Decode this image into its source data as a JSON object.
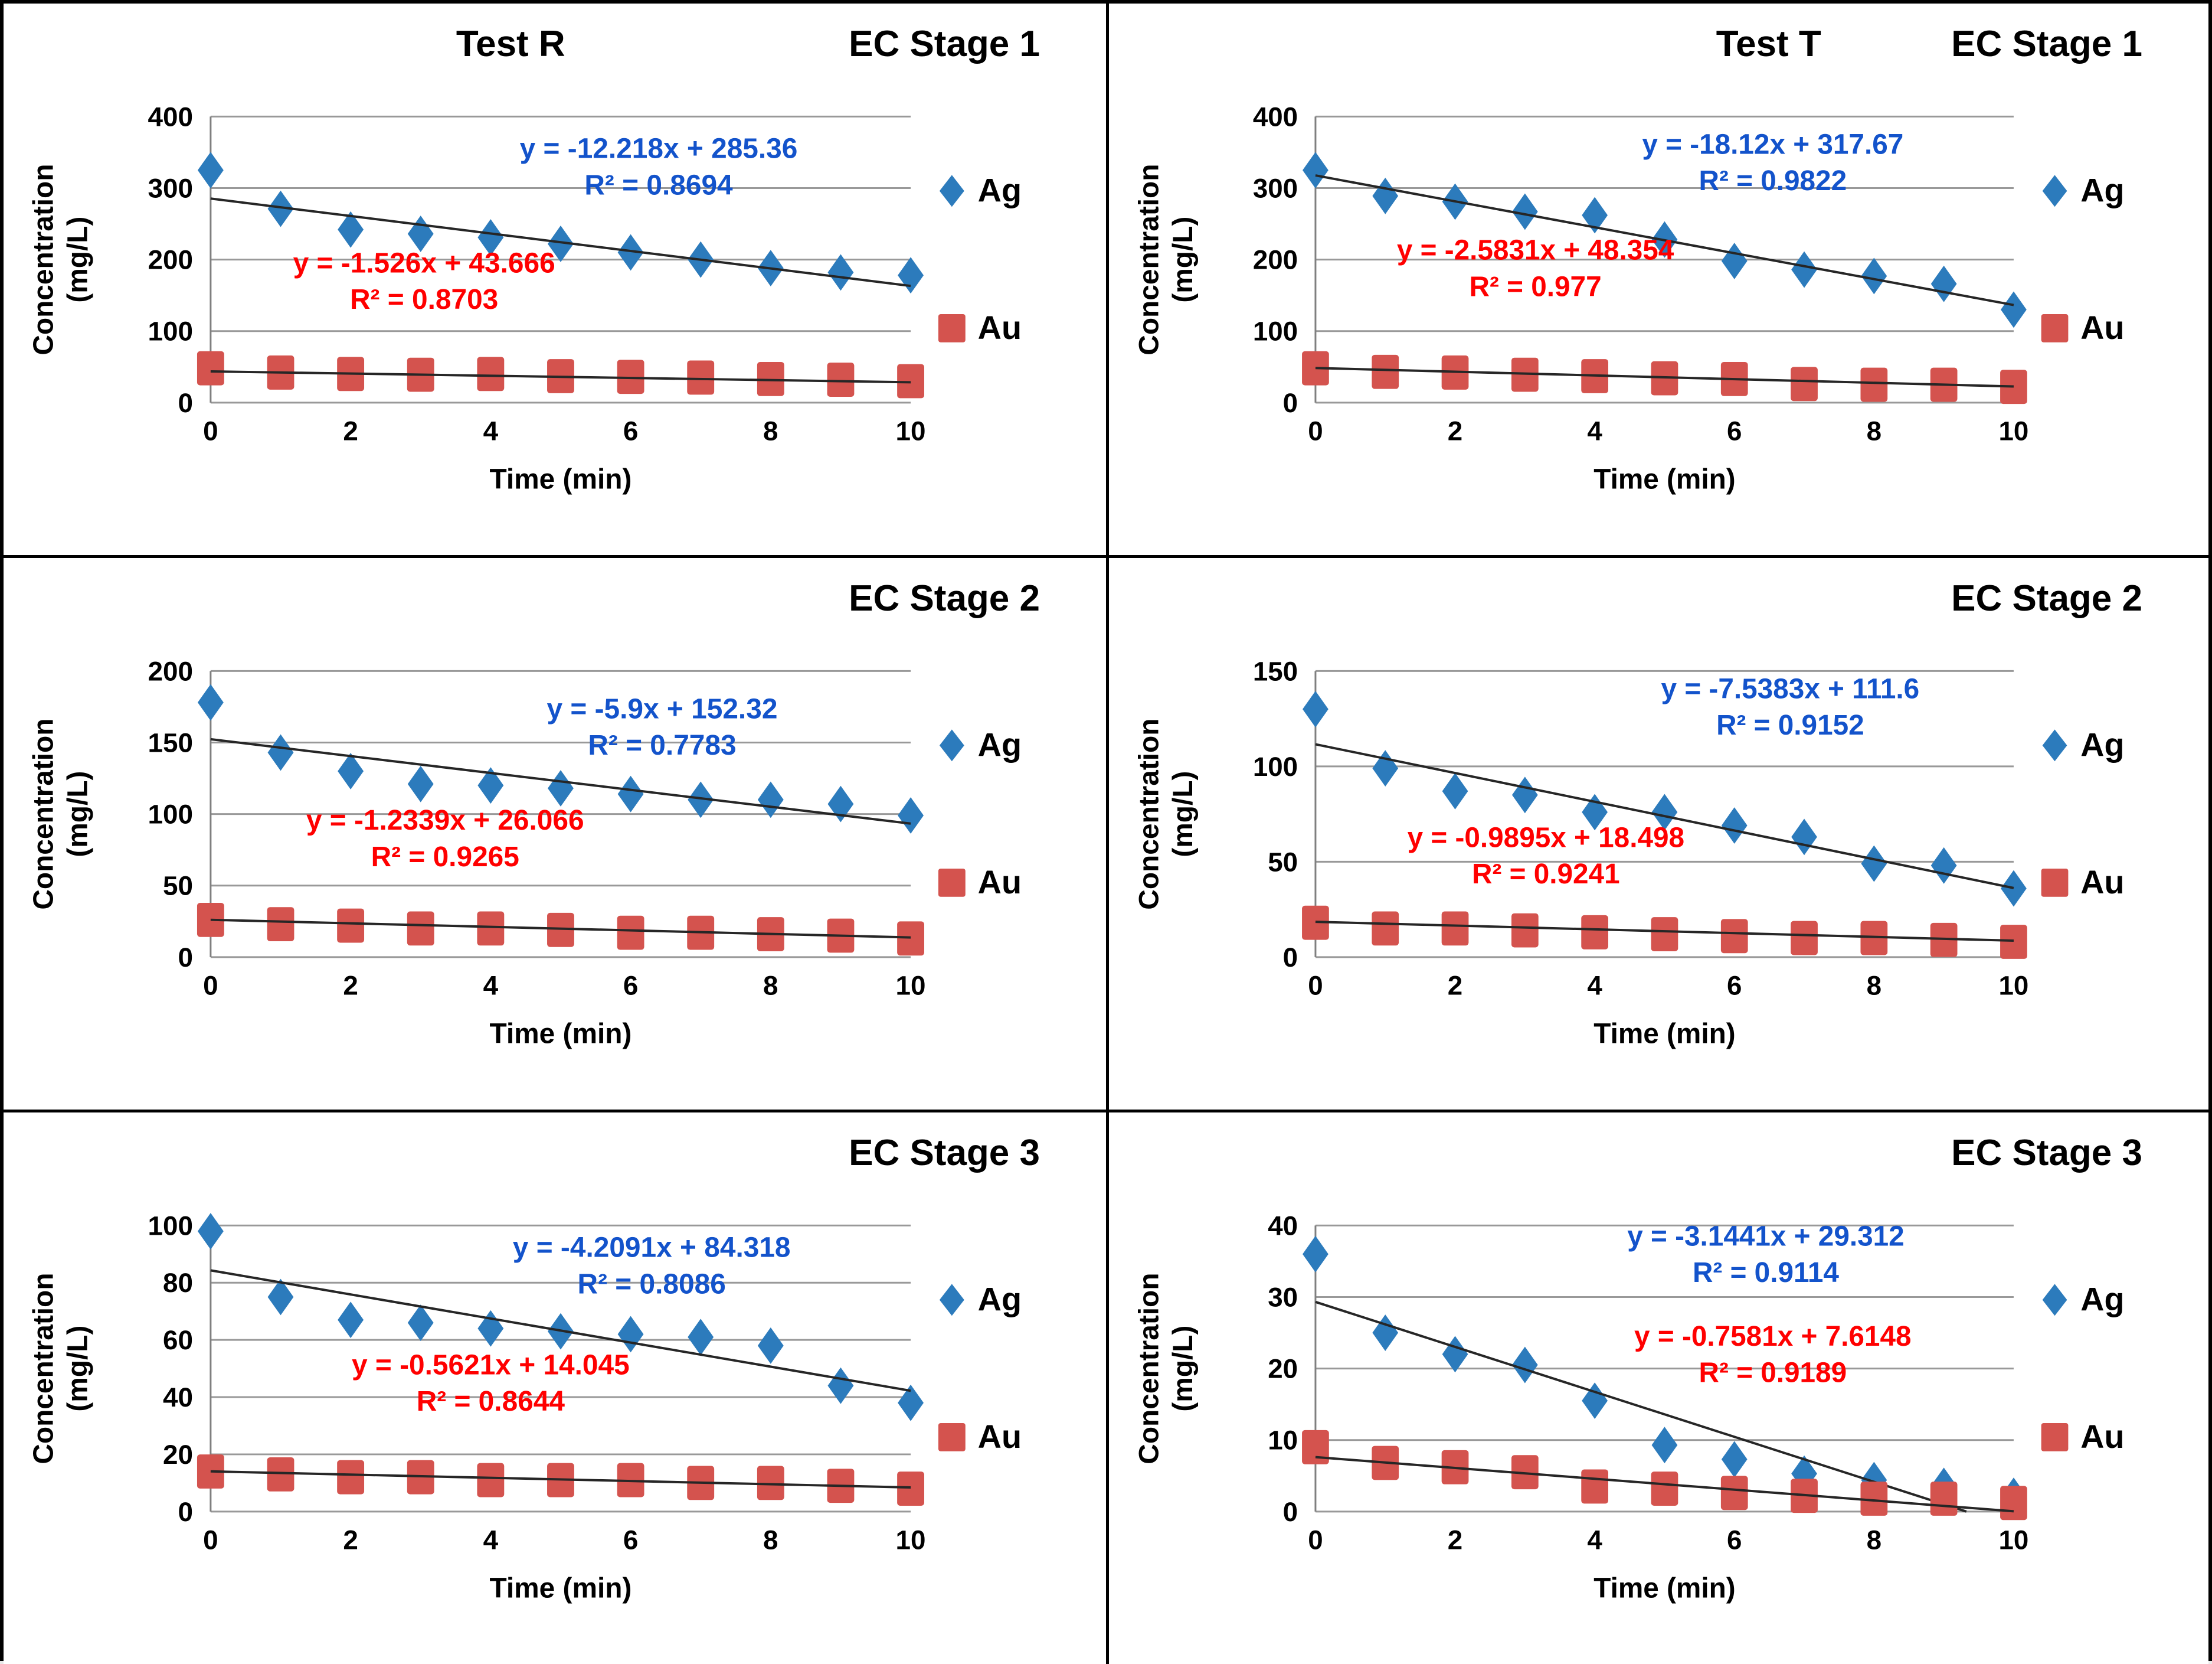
{
  "page": {
    "background": "#ffffff",
    "border_color": "#000000"
  },
  "colors": {
    "ag_marker": "#2C7BBC",
    "au_marker": "#D4534E",
    "eq_blue": "#1353CB",
    "eq_red": "#FF0000",
    "trendline": "#262626",
    "gridline": "#999999",
    "axis_line": "#7F7F7F",
    "text": "#000000"
  },
  "axis_labels": {
    "y_line1": "Concentration",
    "y_line2": "(mg/L)",
    "x": "Time (min)"
  },
  "legend": {
    "ag": "Ag",
    "au": "Au",
    "ag_marker_icon": "diamond-icon",
    "au_marker_icon": "square-icon"
  },
  "chart_data": [
    {
      "type": "scatter",
      "test_label": "Test R",
      "stage_label": "EC Stage 1",
      "title_left_xf": 0.46,
      "xlabel": "Time (min)",
      "ylabel": "Concentration (mg/L)",
      "xlim": [
        0,
        10
      ],
      "ylim": [
        0,
        400
      ],
      "xticks": [
        0,
        2,
        4,
        6,
        8,
        10
      ],
      "yticks": [
        0,
        100,
        200,
        300,
        400
      ],
      "grid": true,
      "legend_position": "right",
      "x": [
        0,
        1,
        2,
        3,
        4,
        5,
        6,
        7,
        8,
        9,
        10
      ],
      "series": [
        {
          "name": "Ag",
          "marker": "diamond",
          "values": [
            325,
            271,
            242,
            236,
            231,
            222,
            210,
            200,
            188,
            182,
            178
          ],
          "trend": {
            "slope": -12.218,
            "intercept": 285.36,
            "eq": "y = -12.218x + 285.36",
            "r2": "R² = 0.8694",
            "label_xf": 0.64,
            "label_yf": 0.145
          }
        },
        {
          "name": "Au",
          "marker": "square",
          "values": [
            48,
            42,
            40,
            39,
            40,
            37,
            36,
            35,
            33,
            32,
            30
          ],
          "trend": {
            "slope": -1.526,
            "intercept": 43.666,
            "eq": "y = -1.526x + 43.666",
            "r2": "R² = 0.8703",
            "label_xf": 0.305,
            "label_yf": 0.545
          }
        }
      ]
    },
    {
      "type": "scatter",
      "test_label": "Test T",
      "stage_label": "EC Stage 1",
      "title_left_xf": 0.6,
      "xlabel": "Time (min)",
      "ylabel": "Concentration (mg/L)",
      "xlim": [
        0,
        10
      ],
      "ylim": [
        0,
        400
      ],
      "xticks": [
        0,
        2,
        4,
        6,
        8,
        10
      ],
      "yticks": [
        0,
        100,
        200,
        300,
        400
      ],
      "grid": true,
      "legend_position": "right",
      "x": [
        0,
        1,
        2,
        3,
        4,
        5,
        6,
        7,
        8,
        9,
        10
      ],
      "series": [
        {
          "name": "Ag",
          "marker": "diamond",
          "values": [
            325,
            289,
            281,
            267,
            262,
            228,
            198,
            186,
            177,
            166,
            130
          ],
          "trend": {
            "slope": -18.12,
            "intercept": 317.67,
            "eq": "y = -18.12x + 317.67",
            "r2": "R² = 0.9822",
            "label_xf": 0.655,
            "label_yf": 0.13
          }
        },
        {
          "name": "Au",
          "marker": "square",
          "values": [
            48,
            43,
            42,
            39,
            37,
            34,
            33,
            26,
            25,
            25,
            22
          ],
          "trend": {
            "slope": -2.5831,
            "intercept": 48.354,
            "eq": "y = -2.5831x + 48.354",
            "r2": "R² = 0.977",
            "label_xf": 0.315,
            "label_yf": 0.5
          }
        }
      ]
    },
    {
      "type": "scatter",
      "test_label": "",
      "stage_label": "EC Stage 2",
      "title_left_xf": 0.46,
      "xlabel": "Time (min)",
      "ylabel": "Concentration (mg/L)",
      "xlim": [
        0,
        10
      ],
      "ylim": [
        0,
        200
      ],
      "xticks": [
        0,
        2,
        4,
        6,
        8,
        10
      ],
      "yticks": [
        0,
        50,
        100,
        150,
        200
      ],
      "grid": true,
      "legend_position": "right",
      "x": [
        0,
        1,
        2,
        3,
        4,
        5,
        6,
        7,
        8,
        9,
        10
      ],
      "series": [
        {
          "name": "Ag",
          "marker": "diamond",
          "values": [
            178,
            143,
            130,
            121,
            120,
            118,
            114,
            110,
            110,
            107,
            99
          ],
          "trend": {
            "slope": -5.9,
            "intercept": 152.32,
            "eq": "y = -5.9x + 152.32",
            "r2": "R² = 0.7783",
            "label_xf": 0.645,
            "label_yf": 0.165
          }
        },
        {
          "name": "Au",
          "marker": "square",
          "values": [
            26,
            23,
            22,
            20,
            20,
            19,
            17,
            17,
            16,
            15,
            13
          ],
          "trend": {
            "slope": -1.2339,
            "intercept": 26.066,
            "eq": "y = -1.2339x + 26.066",
            "r2": "R² = 0.9265",
            "label_xf": 0.335,
            "label_yf": 0.555
          }
        }
      ]
    },
    {
      "type": "scatter",
      "test_label": "",
      "stage_label": "EC Stage 2",
      "title_left_xf": 0.46,
      "xlabel": "Time (min)",
      "ylabel": "Concentration (mg/L)",
      "xlim": [
        0,
        10
      ],
      "ylim": [
        0,
        150
      ],
      "xticks": [
        0,
        2,
        4,
        6,
        8,
        10
      ],
      "yticks": [
        0,
        50,
        100,
        150
      ],
      "grid": true,
      "legend_position": "right",
      "x": [
        0,
        1,
        2,
        3,
        4,
        5,
        6,
        7,
        8,
        9,
        10
      ],
      "series": [
        {
          "name": "Ag",
          "marker": "diamond",
          "values": [
            130,
            99,
            87,
            85,
            76,
            76,
            69,
            63,
            49,
            48,
            36
          ],
          "trend": {
            "slope": -7.5383,
            "intercept": 111.6,
            "eq": "y = -7.5383x + 111.6",
            "r2": "R² = 0.9152",
            "label_xf": 0.68,
            "label_yf": 0.095
          }
        },
        {
          "name": "Au",
          "marker": "square",
          "values": [
            18,
            15,
            15,
            14,
            13,
            12,
            11,
            10,
            10,
            9,
            8
          ],
          "trend": {
            "slope": -0.9895,
            "intercept": 18.498,
            "eq": "y = -0.9895x + 18.498",
            "r2": "R² = 0.9241",
            "label_xf": 0.33,
            "label_yf": 0.615
          }
        }
      ]
    },
    {
      "type": "scatter",
      "test_label": "",
      "stage_label": "EC Stage 3",
      "title_left_xf": 0.46,
      "xlabel": "Time (min)",
      "ylabel": "Concentration (mg/L)",
      "xlim": [
        0,
        10
      ],
      "ylim": [
        0,
        100
      ],
      "xticks": [
        0,
        2,
        4,
        6,
        8,
        10
      ],
      "yticks": [
        0,
        20,
        40,
        60,
        80,
        100
      ],
      "grid": true,
      "legend_position": "right",
      "x": [
        0,
        1,
        2,
        3,
        4,
        5,
        6,
        7,
        8,
        9,
        10
      ],
      "series": [
        {
          "name": "Ag",
          "marker": "diamond",
          "values": [
            98,
            75,
            67,
            66,
            64,
            63,
            62,
            61,
            58,
            44,
            38
          ],
          "trend": {
            "slope": -4.2091,
            "intercept": 84.318,
            "eq": "y = -4.2091x + 84.318",
            "r2": "R² = 0.8086",
            "label_xf": 0.63,
            "label_yf": 0.11
          }
        },
        {
          "name": "Au",
          "marker": "square",
          "values": [
            14,
            13,
            12,
            12,
            11,
            11,
            11,
            10,
            10,
            9,
            8
          ],
          "trend": {
            "slope": -0.5621,
            "intercept": 14.045,
            "eq": "y = -0.5621x + 14.045",
            "r2": "R² = 0.8644",
            "label_xf": 0.4,
            "label_yf": 0.52
          }
        }
      ]
    },
    {
      "type": "scatter",
      "test_label": "",
      "stage_label": "EC Stage 3",
      "title_left_xf": 0.46,
      "xlabel": "Time (min)",
      "ylabel": "Concentration (mg/L)",
      "xlim": [
        0,
        10
      ],
      "ylim": [
        0,
        40
      ],
      "xticks": [
        0,
        2,
        4,
        6,
        8,
        10
      ],
      "yticks": [
        0,
        10,
        20,
        30,
        40
      ],
      "grid": true,
      "legend_position": "right",
      "x": [
        0,
        1,
        2,
        3,
        4,
        5,
        6,
        7,
        8,
        9,
        10
      ],
      "series": [
        {
          "name": "Ag",
          "marker": "diamond",
          "values": [
            36,
            25,
            22,
            20.5,
            15.5,
            9.3,
            7.3,
            5.3,
            4.4,
            3.6,
            2.2
          ],
          "trend": {
            "slope": -3.1441,
            "intercept": 29.312,
            "eq": "y = -3.1441x + 29.312",
            "r2": "R² = 0.9114",
            "label_xf": 0.645,
            "label_yf": 0.07
          }
        },
        {
          "name": "Au",
          "marker": "square",
          "values": [
            9,
            6.8,
            6.2,
            5.5,
            3.5,
            3.2,
            2.6,
            2.2,
            1.8,
            1.8,
            1.2
          ],
          "trend": {
            "slope": -0.7581,
            "intercept": 7.6148,
            "eq": "y = -0.7581x + 7.6148",
            "r2": "R² = 0.9189",
            "label_xf": 0.655,
            "label_yf": 0.42
          }
        }
      ]
    }
  ]
}
